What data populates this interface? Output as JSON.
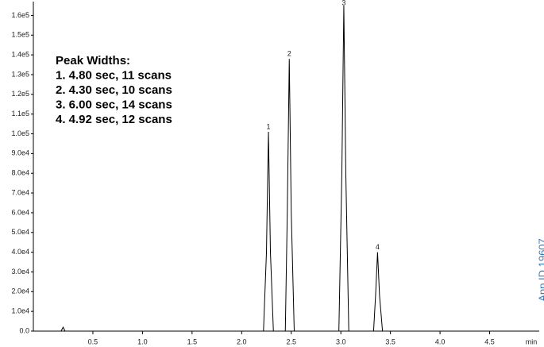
{
  "chart_data": {
    "type": "line",
    "x": [
      -0.1,
      0.18,
      0.2,
      0.22,
      2.22,
      2.25,
      2.27,
      2.29,
      2.32,
      2.44,
      2.46,
      2.48,
      2.5,
      2.53,
      2.98,
      3.01,
      3.03,
      3.05,
      3.08,
      3.33,
      3.35,
      3.37,
      3.39,
      3.42,
      5.0
    ],
    "series": [
      {
        "color": "#000000",
        "values": [
          0,
          0,
          2000,
          0,
          0,
          40000,
          101000,
          40000,
          0,
          0,
          60000,
          138000,
          60000,
          0,
          0,
          80000,
          165000,
          80000,
          0,
          0,
          18000,
          40000,
          18000,
          0,
          0
        ]
      }
    ],
    "xlim": [
      -0.1,
      5.0
    ],
    "ylim": [
      0,
      165000
    ],
    "xticks": [
      0.5,
      {
        "value": 1,
        "label": "1.0"
      },
      1.5,
      {
        "value": 2,
        "label": "2.0"
      },
      2.5,
      {
        "value": 3,
        "label": "3.0"
      },
      3.5,
      {
        "value": 4,
        "label": "4.0"
      },
      4.5
    ],
    "yticks": [
      {
        "value": 0,
        "label": "0.0"
      },
      {
        "value": 10000,
        "label": "1.0e4"
      },
      {
        "value": 20000,
        "label": "2.0e4"
      },
      {
        "value": 30000,
        "label": "3.0e4"
      },
      {
        "value": 40000,
        "label": "4.0e4"
      },
      {
        "value": 50000,
        "label": "5.0e4"
      },
      {
        "value": 60000,
        "label": "6.0e4"
      },
      {
        "value": 70000,
        "label": "7.0e4"
      },
      {
        "value": 80000,
        "label": "8.0e4"
      },
      {
        "value": 90000,
        "label": "9.0e4"
      },
      {
        "value": 100000,
        "label": "1.0e5"
      },
      {
        "value": 110000,
        "label": "1.1e5"
      },
      {
        "value": 120000,
        "label": "1.2e5"
      },
      {
        "value": 130000,
        "label": "1.3e5"
      },
      {
        "value": 140000,
        "label": "1.4e5"
      },
      {
        "value": 150000,
        "label": "1.5e5"
      },
      {
        "value": 160000,
        "label": "1.6e5"
      }
    ],
    "xlabel": "min",
    "peak_labels": [
      {
        "label": "1",
        "x": 2.27,
        "y": 101000
      },
      {
        "label": "2",
        "x": 2.48,
        "y": 138000
      },
      {
        "label": "3",
        "x": 3.03,
        "y": 165000
      },
      {
        "label": "4",
        "x": 3.37,
        "y": 40000
      }
    ],
    "annotation": [
      "Peak Widths:",
      "1. 4.80 sec, 11 scans",
      "2. 4.30 sec, 10 scans",
      "3. 6.00 sec, 14 scans",
      "4. 4.92 sec, 12 scans"
    ],
    "watermark": "App ID 19607"
  }
}
